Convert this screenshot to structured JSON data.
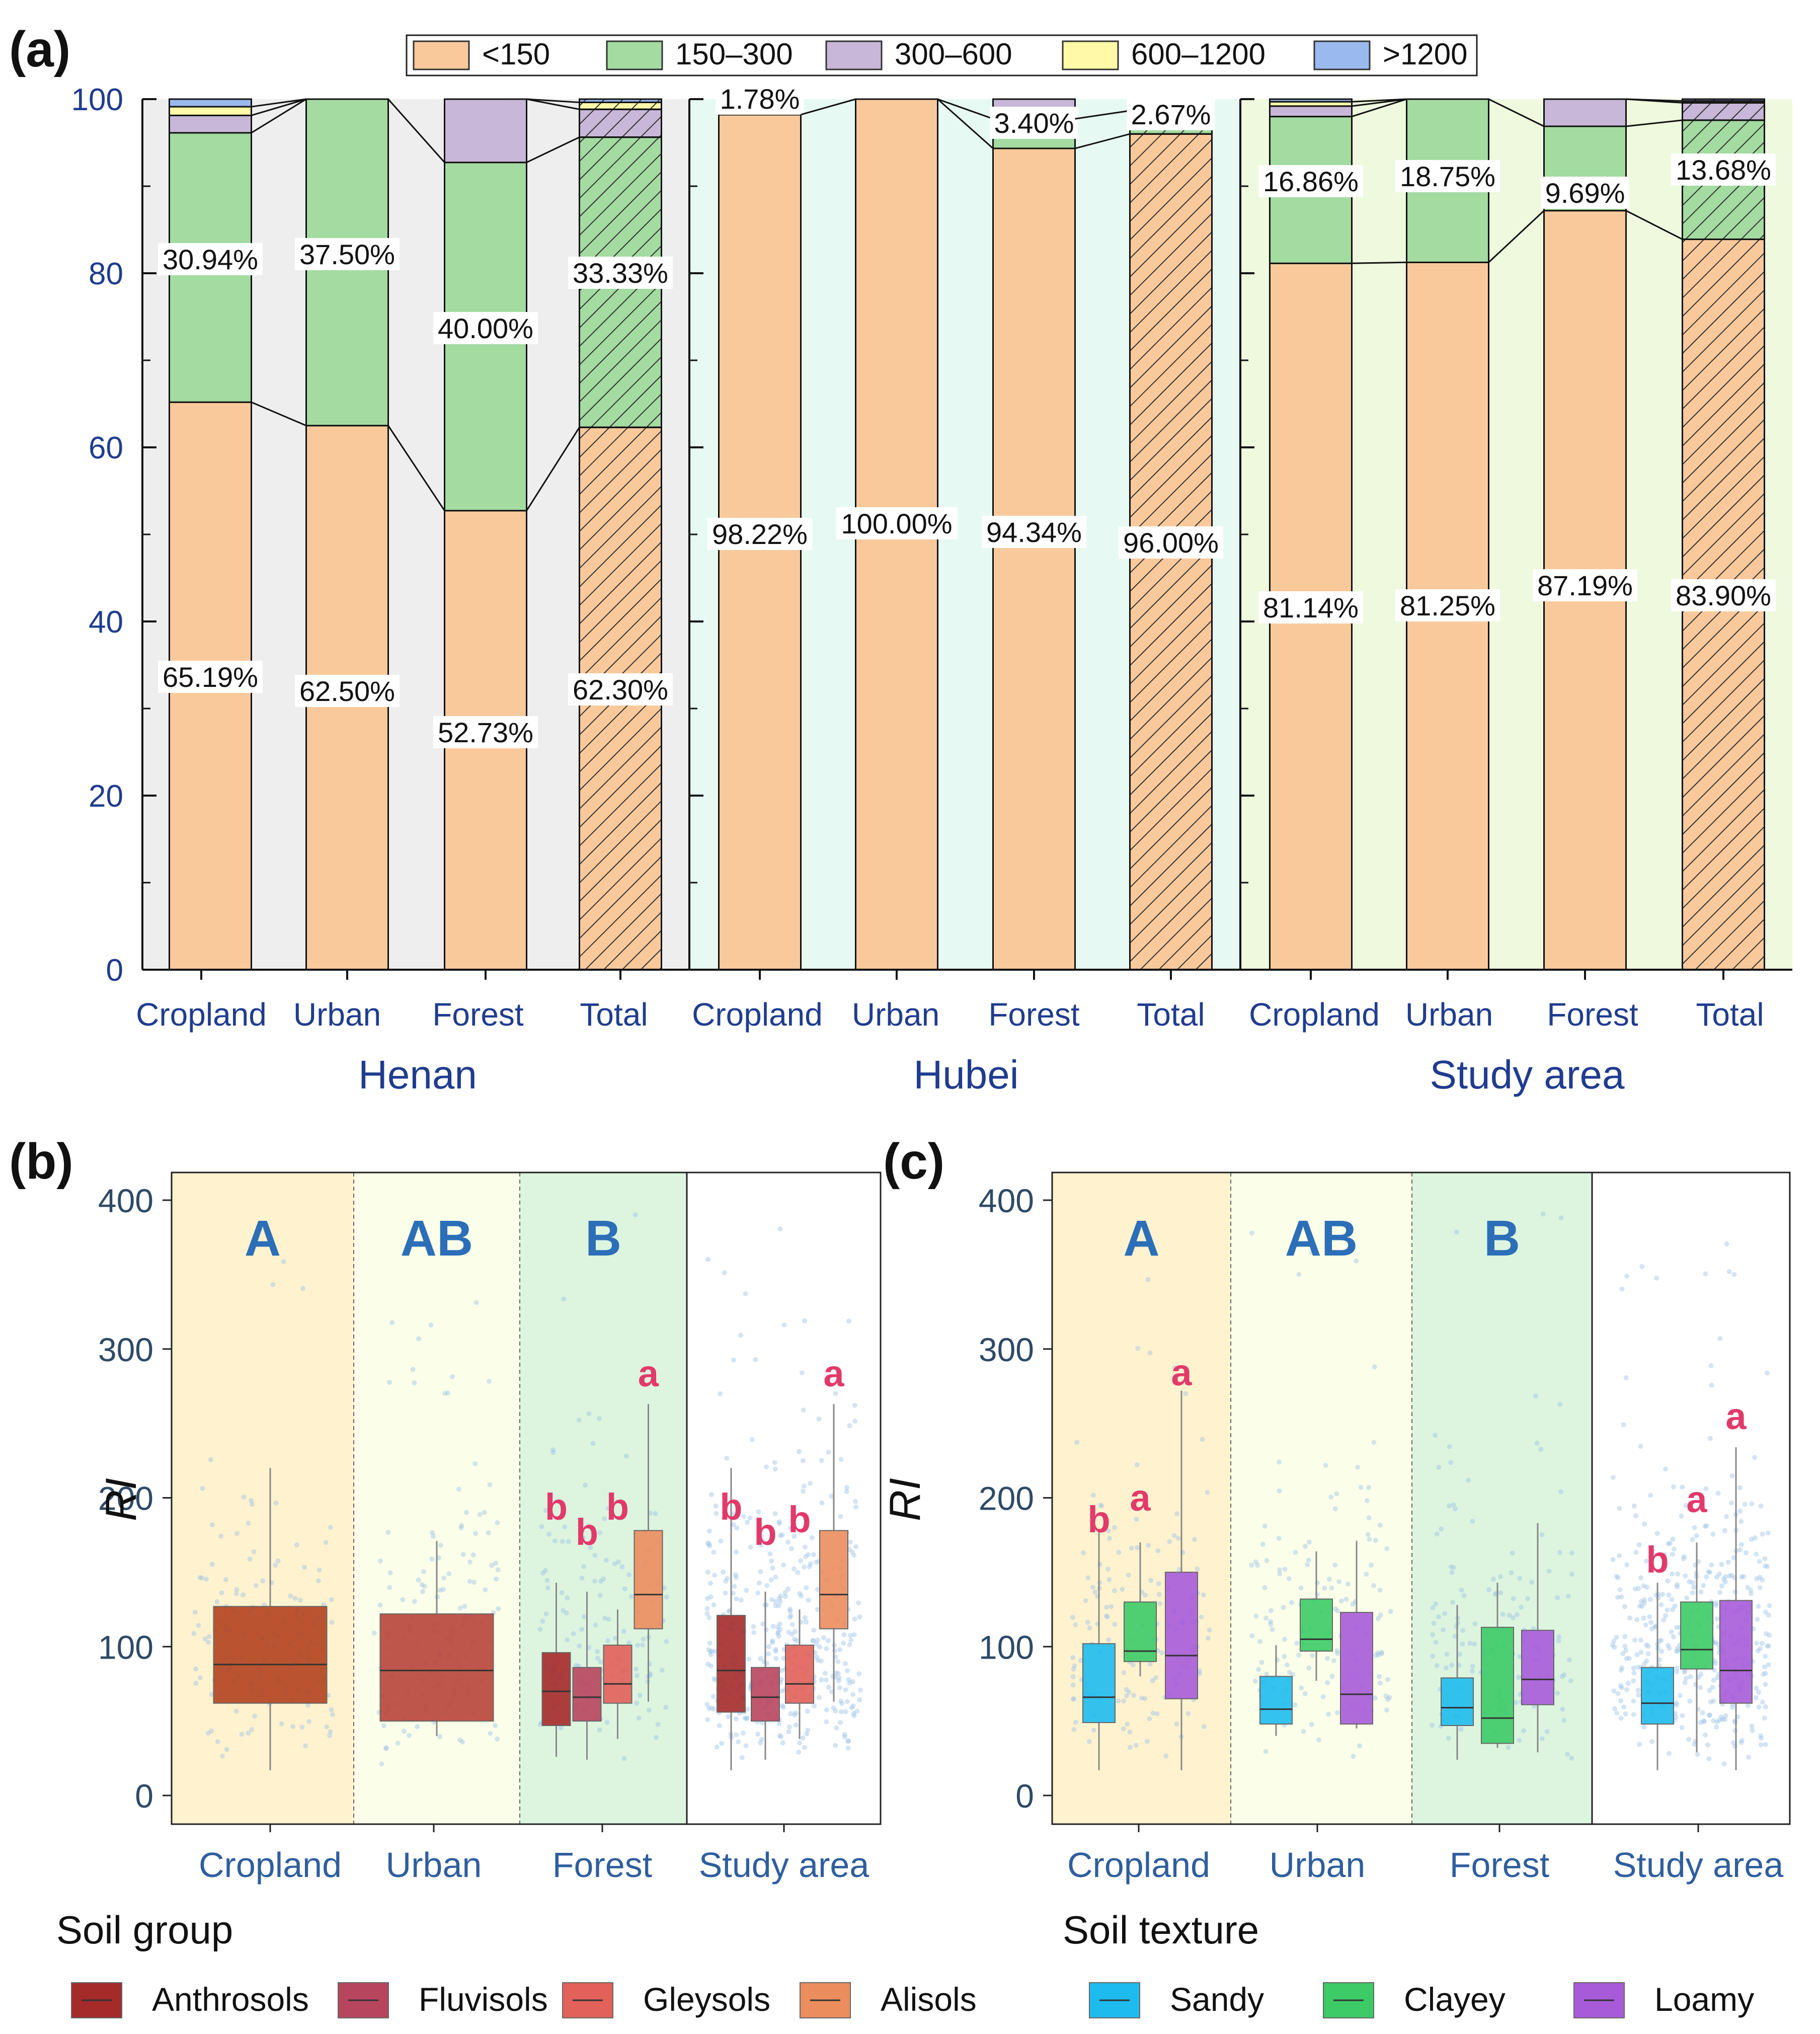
{
  "chart_data": [
    {
      "panel_label": "(a)",
      "type": "bar",
      "stacked": true,
      "ylim": [
        0,
        100
      ],
      "yticks": [
        "0",
        "20",
        "40",
        "60",
        "80",
        "100"
      ],
      "legend": [
        {
          "name": "<150",
          "color": "#FAC99B"
        },
        {
          "name": "150–300",
          "color": "#A3DBA1"
        },
        {
          "name": "300–600",
          "color": "#C8B7D8"
        },
        {
          "name": "600–1200",
          "color": "#FFF9A8"
        },
        {
          "name": ">1200",
          "color": "#9AB9EE"
        }
      ],
      "groups": [
        {
          "name": "Henan",
          "bg": "#EEEEEE",
          "bars": [
            {
              "category": "Cropland",
              "values": [
                65.19,
                30.94,
                2.0,
                1.0,
                0.87
              ],
              "labels": [
                "65.19%",
                "30.94%"
              ],
              "hatched": false
            },
            {
              "category": "Urban",
              "values": [
                62.5,
                37.5,
                0,
                0,
                0
              ],
              "labels": [
                "62.50%",
                "37.50%"
              ],
              "hatched": false
            },
            {
              "category": "Forest",
              "values": [
                52.73,
                40.0,
                7.27,
                0,
                0
              ],
              "labels": [
                "52.73%",
                "40.00%"
              ],
              "hatched": false
            },
            {
              "category": "Total",
              "values": [
                62.3,
                33.33,
                3.2,
                0.8,
                0.37
              ],
              "labels": [
                "62.30%",
                "33.33%"
              ],
              "hatched": true
            }
          ]
        },
        {
          "name": "Hubei",
          "bg": "#E6FAF3",
          "bars": [
            {
              "category": "Cropland",
              "values": [
                98.22,
                1.78,
                0,
                0,
                0
              ],
              "labels": [
                "98.22%",
                "1.78%"
              ],
              "hatched": false
            },
            {
              "category": "Urban",
              "values": [
                100.0,
                0,
                0,
                0,
                0
              ],
              "labels": [
                "100.00%"
              ],
              "hatched": false
            },
            {
              "category": "Forest",
              "values": [
                94.34,
                3.4,
                2.26,
                0,
                0
              ],
              "labels": [
                "94.34%",
                "3.40%"
              ],
              "hatched": false
            },
            {
              "category": "Total",
              "values": [
                96.0,
                2.67,
                1.33,
                0,
                0
              ],
              "labels": [
                "96.00%",
                "2.67%"
              ],
              "hatched": true
            }
          ]
        },
        {
          "name": "Study area",
          "bg": "#EEF9DE",
          "bars": [
            {
              "category": "Cropland",
              "values": [
                81.14,
                16.86,
                1.2,
                0.5,
                0.3
              ],
              "labels": [
                "81.14%",
                "16.86%"
              ],
              "hatched": false
            },
            {
              "category": "Urban",
              "values": [
                81.25,
                18.75,
                0,
                0,
                0
              ],
              "labels": [
                "81.25%",
                "18.75%"
              ],
              "hatched": false
            },
            {
              "category": "Forest",
              "values": [
                87.19,
                9.69,
                3.12,
                0,
                0
              ],
              "labels": [
                "87.19%",
                "9.69%"
              ],
              "hatched": false
            },
            {
              "category": "Total",
              "values": [
                83.9,
                13.68,
                2.0,
                0.2,
                0.22
              ],
              "labels": [
                "83.90%",
                "13.68%"
              ],
              "hatched": true
            }
          ]
        }
      ]
    },
    {
      "panel_label": "(b)",
      "type": "boxplot",
      "ylabel": "RI",
      "ylim": [
        -20,
        420
      ],
      "yticks": [
        "0",
        "100",
        "200",
        "300",
        "400"
      ],
      "legend_title": "Soil group",
      "legend": [
        {
          "name": "Anthrosols",
          "color": "#A52A2A"
        },
        {
          "name": "Fluvisols",
          "color": "#B8455E"
        },
        {
          "name": "Gleysols",
          "color": "#E2615A"
        },
        {
          "name": "Alisols",
          "color": "#EC8D5E"
        }
      ],
      "groups": [
        {
          "name": "Cropland",
          "group_letter": "A",
          "bg": "#FFF3CF",
          "boxes": [
            {
              "series": "Cropland",
              "color": "#B2421E",
              "min": 17,
              "q1": 62,
              "median": 88,
              "q3": 127,
              "max": 220,
              "letter": ""
            }
          ]
        },
        {
          "name": "Urban",
          "group_letter": "AB",
          "bg": "#FBFFE9",
          "boxes": [
            {
              "series": "Urban",
              "color": "#B8443A",
              "min": 40,
              "q1": 50,
              "median": 84,
              "q3": 122,
              "max": 171,
              "letter": ""
            }
          ]
        },
        {
          "name": "Forest",
          "group_letter": "B",
          "bg": "#DDF5DF",
          "boxes": [
            {
              "series": "Anthrosols",
              "color": "#A52A2A",
              "min": 26,
              "q1": 47,
              "median": 70,
              "q3": 96,
              "max": 143,
              "letter": "b"
            },
            {
              "series": "Fluvisols",
              "color": "#B8455E",
              "min": 24,
              "q1": 50,
              "median": 66,
              "q3": 86,
              "max": 137,
              "letter": "b"
            },
            {
              "series": "Gleysols",
              "color": "#E2615A",
              "min": 38,
              "q1": 62,
              "median": 75,
              "q3": 101,
              "max": 125,
              "letter": "b"
            },
            {
              "series": "Alisols",
              "color": "#EC8D5E",
              "min": 63,
              "q1": 112,
              "median": 135,
              "q3": 178,
              "max": 263,
              "letter": "a"
            }
          ]
        },
        {
          "name": "Study area",
          "group_letter": "",
          "bg": "#FFFFFF",
          "boxes": [
            {
              "series": "Anthrosols",
              "color": "#A52A2A",
              "min": 17,
              "q1": 56,
              "median": 84,
              "q3": 121,
              "max": 220,
              "letter": "b"
            },
            {
              "series": "Fluvisols",
              "color": "#B8455E",
              "min": 24,
              "q1": 50,
              "median": 66,
              "q3": 86,
              "max": 137,
              "letter": "b"
            },
            {
              "series": "Gleysols",
              "color": "#E2615A",
              "min": 38,
              "q1": 62,
              "median": 75,
              "q3": 101,
              "max": 125,
              "letter": "b"
            },
            {
              "series": "Alisols",
              "color": "#EC8D5E",
              "min": 63,
              "q1": 112,
              "median": 135,
              "q3": 178,
              "max": 263,
              "letter": "a"
            }
          ]
        }
      ]
    },
    {
      "panel_label": "(c)",
      "type": "boxplot",
      "ylabel": "RI",
      "ylim": [
        -20,
        420
      ],
      "yticks": [
        "0",
        "100",
        "200",
        "300",
        "400"
      ],
      "legend_title": "Soil texture",
      "legend": [
        {
          "name": "Sandy",
          "color": "#1EBBEE"
        },
        {
          "name": "Clayey",
          "color": "#3CCB66"
        },
        {
          "name": "Loamy",
          "color": "#A75BD9"
        }
      ],
      "groups": [
        {
          "name": "Cropland",
          "group_letter": "A",
          "bg": "#FFF3CF",
          "boxes": [
            {
              "series": "Sandy",
              "color": "#1EBBEE",
              "min": 17,
              "q1": 49,
              "median": 66,
              "q3": 102,
              "max": 178,
              "letter": "b"
            },
            {
              "series": "Clayey",
              "color": "#3CCB66",
              "min": 80,
              "q1": 90,
              "median": 97,
              "q3": 130,
              "max": 170,
              "letter": "a"
            },
            {
              "series": "Loamy",
              "color": "#A75BD9",
              "min": 17,
              "q1": 65,
              "median": 94,
              "q3": 150,
              "max": 272,
              "letter": "a"
            }
          ]
        },
        {
          "name": "Urban",
          "group_letter": "AB",
          "bg": "#FBFFE9",
          "boxes": [
            {
              "series": "Sandy",
              "color": "#1EBBEE",
              "min": 40,
              "q1": 48,
              "median": 58,
              "q3": 80,
              "max": 101,
              "letter": ""
            },
            {
              "series": "Clayey",
              "color": "#3CCB66",
              "min": 77,
              "q1": 97,
              "median": 105,
              "q3": 132,
              "max": 164,
              "letter": ""
            },
            {
              "series": "Loamy",
              "color": "#A75BD9",
              "min": 45,
              "q1": 48,
              "median": 68,
              "q3": 123,
              "max": 171,
              "letter": ""
            }
          ]
        },
        {
          "name": "Forest",
          "group_letter": "B",
          "bg": "#DDF5DF",
          "boxes": [
            {
              "series": "Sandy",
              "color": "#1EBBEE",
              "min": 24,
              "q1": 47,
              "median": 59,
              "q3": 79,
              "max": 128,
              "letter": ""
            },
            {
              "series": "Clayey",
              "color": "#3CCB66",
              "min": 32,
              "q1": 35,
              "median": 52,
              "q3": 113,
              "max": 143,
              "letter": ""
            },
            {
              "series": "Loamy",
              "color": "#A75BD9",
              "min": 29,
              "q1": 61,
              "median": 78,
              "q3": 111,
              "max": 183,
              "letter": ""
            }
          ]
        },
        {
          "name": "Study area",
          "group_letter": "",
          "bg": "#FFFFFF",
          "boxes": [
            {
              "series": "Sandy",
              "color": "#1EBBEE",
              "min": 17,
              "q1": 48,
              "median": 62,
              "q3": 86,
              "max": 143,
              "letter": "b"
            },
            {
              "series": "Clayey",
              "color": "#3CCB66",
              "min": 29,
              "q1": 85,
              "median": 98,
              "q3": 130,
              "max": 170,
              "letter": "a"
            },
            {
              "series": "Loamy",
              "color": "#A75BD9",
              "min": 17,
              "q1": 62,
              "median": 84,
              "q3": 131,
              "max": 234,
              "letter": "a"
            }
          ]
        }
      ]
    }
  ]
}
